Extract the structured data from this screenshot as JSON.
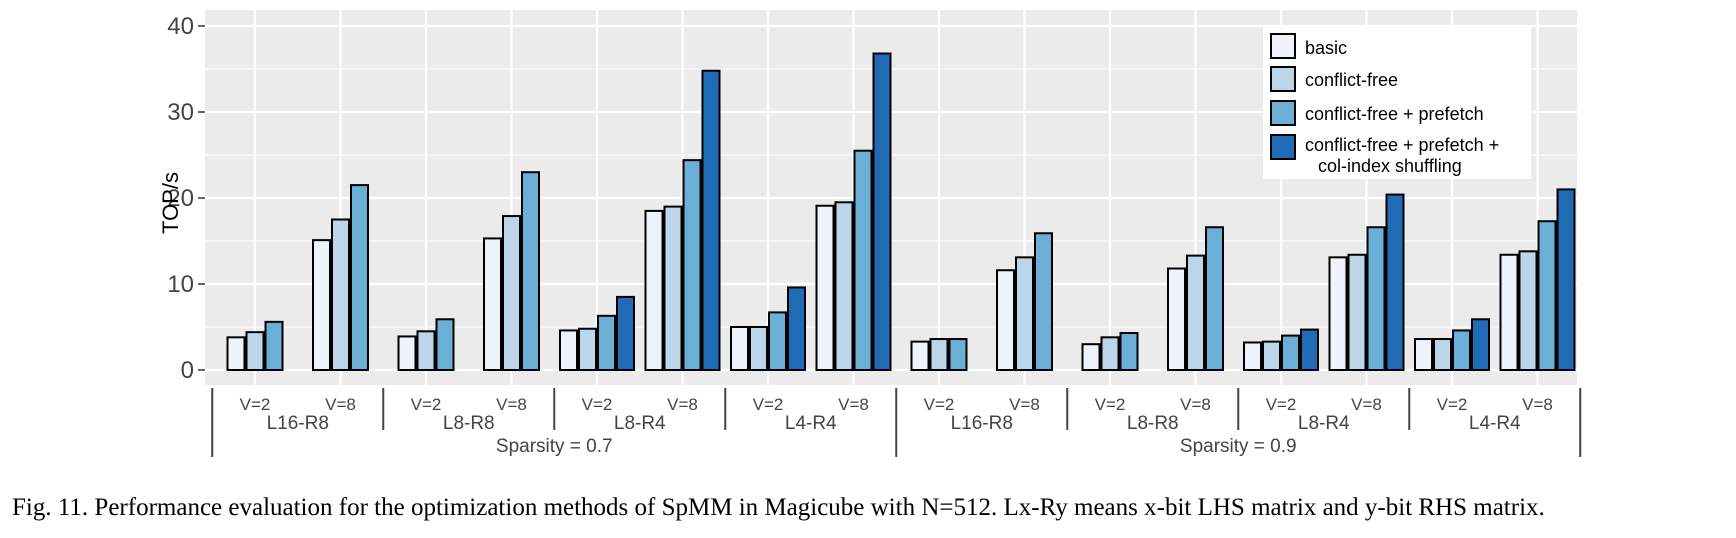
{
  "chart_data": {
    "type": "bar",
    "ylabel": "TOP/s",
    "ylim": [
      0,
      41
    ],
    "yticks": [
      0,
      10,
      20,
      30,
      40
    ],
    "grid": true,
    "legend_position": "top-right",
    "series": [
      {
        "name": "basic",
        "color": "#eef2fa"
      },
      {
        "name": "conflict-free",
        "color": "#bcd5e9"
      },
      {
        "name": "conflict-free + prefetch",
        "color": "#6baed6"
      },
      {
        "name": "conflict-free + prefetch + col-index shuffling",
        "legend_lines": [
          "conflict-free + prefetch +",
          "col-index shuffling"
        ],
        "color": "#1f6bb5"
      }
    ],
    "sparsity_groups": [
      {
        "label": "Sparsity = 0.7",
        "configs": [
          {
            "label": "L16-R8",
            "v": [
              {
                "label": "V=2",
                "values": [
                  3.8,
                  4.4,
                  5.6
                ]
              },
              {
                "label": "V=8",
                "values": [
                  15.1,
                  17.5,
                  21.5
                ]
              }
            ]
          },
          {
            "label": "L8-R8",
            "v": [
              {
                "label": "V=2",
                "values": [
                  3.9,
                  4.5,
                  5.9
                ]
              },
              {
                "label": "V=8",
                "values": [
                  15.3,
                  17.9,
                  23.0
                ]
              }
            ]
          },
          {
            "label": "L8-R4",
            "v": [
              {
                "label": "V=2",
                "values": [
                  4.6,
                  4.8,
                  6.3,
                  8.5
                ]
              },
              {
                "label": "V=8",
                "values": [
                  18.5,
                  19.0,
                  24.4,
                  34.8
                ]
              }
            ]
          },
          {
            "label": "L4-R4",
            "v": [
              {
                "label": "V=2",
                "values": [
                  5.0,
                  5.0,
                  6.7,
                  9.6
                ]
              },
              {
                "label": "V=8",
                "values": [
                  19.1,
                  19.5,
                  25.5,
                  36.8
                ]
              }
            ]
          }
        ]
      },
      {
        "label": "Sparsity = 0.9",
        "configs": [
          {
            "label": "L16-R8",
            "v": [
              {
                "label": "V=2",
                "values": [
                  3.3,
                  3.6,
                  3.6
                ]
              },
              {
                "label": "V=8",
                "values": [
                  11.6,
                  13.1,
                  15.9
                ]
              }
            ]
          },
          {
            "label": "L8-R8",
            "v": [
              {
                "label": "V=2",
                "values": [
                  3.0,
                  3.8,
                  4.3
                ]
              },
              {
                "label": "V=8",
                "values": [
                  11.8,
                  13.3,
                  16.6
                ]
              }
            ]
          },
          {
            "label": "L8-R4",
            "v": [
              {
                "label": "V=2",
                "values": [
                  3.2,
                  3.3,
                  4.0,
                  4.7
                ]
              },
              {
                "label": "V=8",
                "values": [
                  13.1,
                  13.4,
                  16.6,
                  20.4
                ]
              }
            ]
          },
          {
            "label": "L4-R4",
            "v": [
              {
                "label": "V=2",
                "values": [
                  3.6,
                  3.6,
                  4.6,
                  5.9
                ]
              },
              {
                "label": "V=8",
                "values": [
                  13.4,
                  13.8,
                  17.3,
                  21.0
                ]
              }
            ]
          }
        ]
      }
    ]
  },
  "caption": "Fig. 11.  Performance evaluation for the optimization methods of SpMM in Magicube with N=512. Lx-Ry means x-bit LHS matrix and y-bit RHS matrix."
}
